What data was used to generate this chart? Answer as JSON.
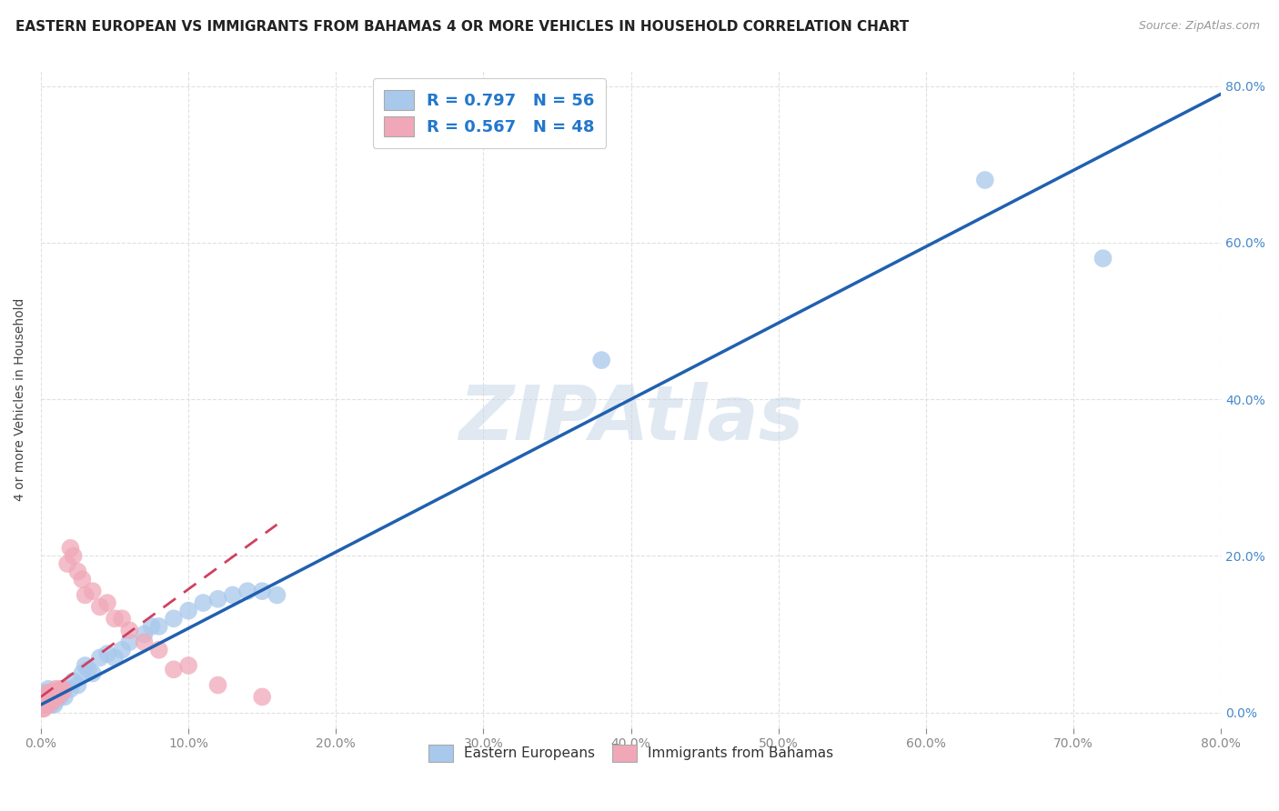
{
  "title": "EASTERN EUROPEAN VS IMMIGRANTS FROM BAHAMAS 4 OR MORE VEHICLES IN HOUSEHOLD CORRELATION CHART",
  "source": "Source: ZipAtlas.com",
  "ylabel": "4 or more Vehicles in Household",
  "xlim": [
    0,
    0.8
  ],
  "ylim": [
    -0.02,
    0.82
  ],
  "watermark": "ZIPAtlas",
  "legend1_label": "R = 0.797   N = 56",
  "legend2_label": "R = 0.567   N = 48",
  "legend_bottom_label1": "Eastern Europeans",
  "legend_bottom_label2": "Immigrants from Bahamas",
  "blue_color": "#A8C8EC",
  "pink_color": "#F0A8B8",
  "blue_line_color": "#2060B0",
  "pink_line_color": "#D04060",
  "background_color": "#FFFFFF",
  "grid_color": "#DDDDDD",
  "title_color": "#222222",
  "title_fontsize": 11,
  "blue_points_x": [
    0.001,
    0.001,
    0.002,
    0.002,
    0.002,
    0.003,
    0.003,
    0.003,
    0.004,
    0.004,
    0.004,
    0.005,
    0.005,
    0.005,
    0.006,
    0.006,
    0.007,
    0.007,
    0.008,
    0.008,
    0.009,
    0.009,
    0.01,
    0.01,
    0.011,
    0.012,
    0.013,
    0.014,
    0.015,
    0.016,
    0.02,
    0.022,
    0.025,
    0.028,
    0.03,
    0.032,
    0.035,
    0.04,
    0.045,
    0.05,
    0.055,
    0.06,
    0.07,
    0.075,
    0.08,
    0.09,
    0.1,
    0.11,
    0.12,
    0.13,
    0.14,
    0.15,
    0.16,
    0.38,
    0.64,
    0.72
  ],
  "blue_points_y": [
    0.01,
    0.02,
    0.01,
    0.015,
    0.025,
    0.01,
    0.015,
    0.02,
    0.01,
    0.015,
    0.025,
    0.01,
    0.02,
    0.03,
    0.015,
    0.025,
    0.01,
    0.02,
    0.015,
    0.025,
    0.01,
    0.02,
    0.015,
    0.025,
    0.02,
    0.025,
    0.02,
    0.025,
    0.03,
    0.02,
    0.03,
    0.04,
    0.035,
    0.05,
    0.06,
    0.055,
    0.05,
    0.07,
    0.075,
    0.07,
    0.08,
    0.09,
    0.1,
    0.11,
    0.11,
    0.12,
    0.13,
    0.14,
    0.145,
    0.15,
    0.155,
    0.155,
    0.15,
    0.45,
    0.68,
    0.58
  ],
  "pink_points_x": [
    0.001,
    0.001,
    0.001,
    0.002,
    0.002,
    0.002,
    0.002,
    0.003,
    0.003,
    0.003,
    0.004,
    0.004,
    0.004,
    0.005,
    0.005,
    0.005,
    0.006,
    0.006,
    0.007,
    0.007,
    0.008,
    0.008,
    0.009,
    0.01,
    0.01,
    0.011,
    0.012,
    0.013,
    0.014,
    0.015,
    0.018,
    0.02,
    0.022,
    0.025,
    0.028,
    0.03,
    0.035,
    0.04,
    0.045,
    0.05,
    0.055,
    0.06,
    0.07,
    0.08,
    0.09,
    0.1,
    0.12,
    0.15
  ],
  "pink_points_y": [
    0.005,
    0.01,
    0.015,
    0.005,
    0.01,
    0.015,
    0.02,
    0.01,
    0.015,
    0.02,
    0.01,
    0.015,
    0.02,
    0.01,
    0.015,
    0.025,
    0.015,
    0.025,
    0.015,
    0.02,
    0.015,
    0.025,
    0.02,
    0.02,
    0.03,
    0.02,
    0.025,
    0.03,
    0.025,
    0.03,
    0.19,
    0.21,
    0.2,
    0.18,
    0.17,
    0.15,
    0.155,
    0.135,
    0.14,
    0.12,
    0.12,
    0.105,
    0.09,
    0.08,
    0.055,
    0.06,
    0.035,
    0.02
  ],
  "blue_line_x": [
    0.0,
    0.8
  ],
  "blue_line_y": [
    0.01,
    0.79
  ],
  "pink_line_x": [
    0.0,
    0.16
  ],
  "pink_line_y": [
    0.02,
    0.24
  ]
}
